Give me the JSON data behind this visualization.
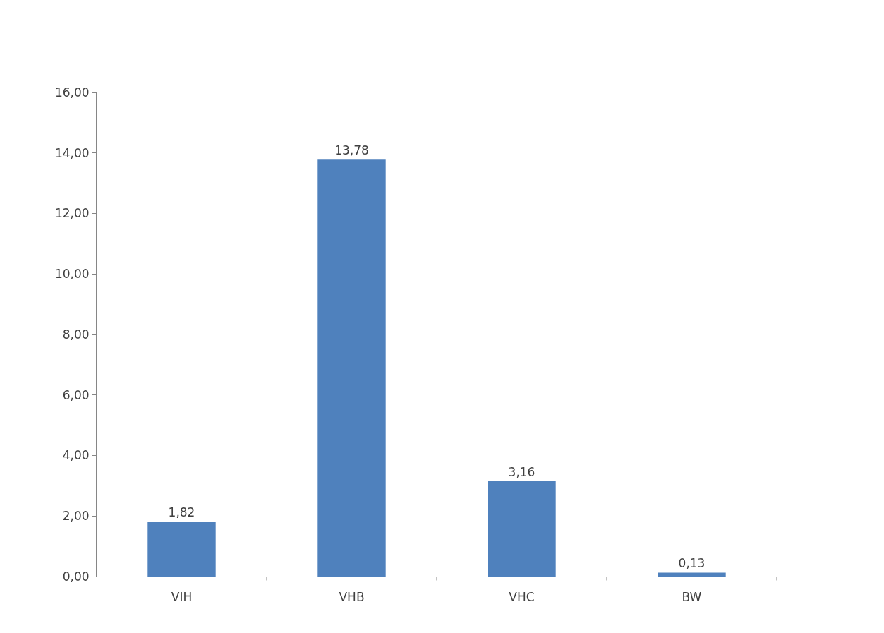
{
  "chart_data": {
    "type": "bar",
    "categories": [
      "VIH",
      "VHB",
      "VHC",
      "BW"
    ],
    "values": [
      1.82,
      13.78,
      3.16,
      0.13
    ],
    "value_labels": [
      "1,82",
      "13,78",
      "3,16",
      "0,13"
    ],
    "color": "#4f81bd",
    "ylim": [
      0,
      16
    ],
    "yticks": [
      {
        "value": 0,
        "label": "0,00"
      },
      {
        "value": 2,
        "label": "2,00"
      },
      {
        "value": 4,
        "label": "4,00"
      },
      {
        "value": 6,
        "label": "6,00"
      },
      {
        "value": 8,
        "label": "8,00"
      },
      {
        "value": 10,
        "label": "10,00"
      },
      {
        "value": 12,
        "label": "12,00"
      },
      {
        "value": 14,
        "label": "14,00"
      },
      {
        "value": 16,
        "label": "16,00"
      }
    ],
    "legend": false
  }
}
